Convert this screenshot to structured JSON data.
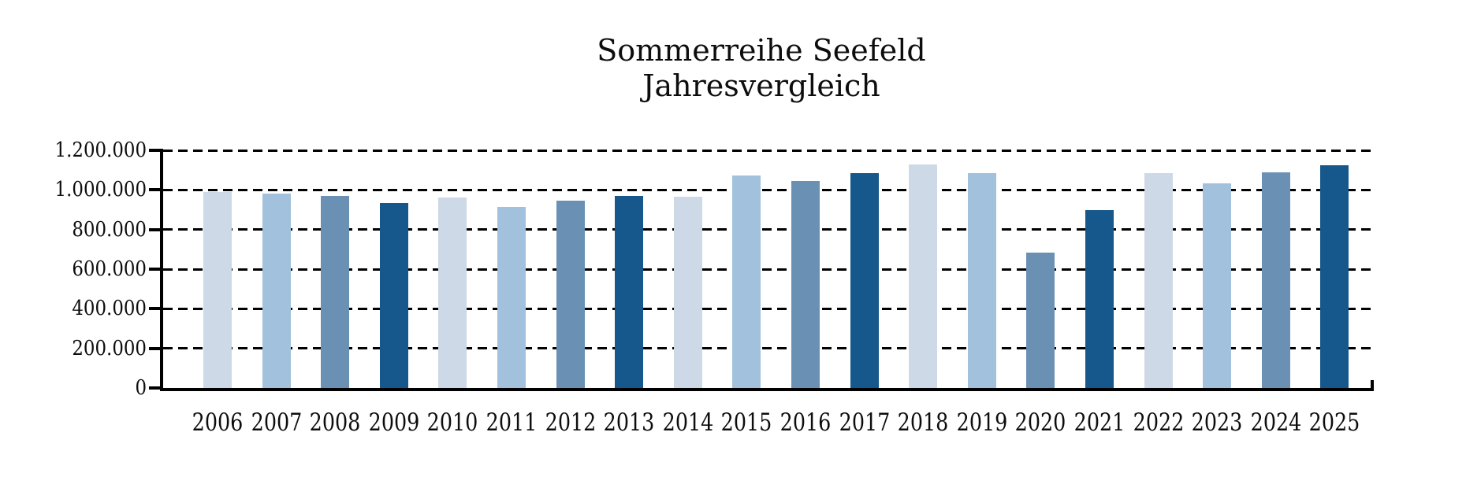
{
  "chart_data": {
    "type": "bar",
    "title_line1": "Sommerreihe Seefeld",
    "title_line2": "Jahresvergleich",
    "categories": [
      "2006",
      "2007",
      "2008",
      "2009",
      "2010",
      "2011",
      "2012",
      "2013",
      "2014",
      "2015",
      "2016",
      "2017",
      "2018",
      "2019",
      "2020",
      "2021",
      "2022",
      "2023",
      "2024",
      "2025"
    ],
    "values": [
      990000,
      980000,
      970000,
      935000,
      960000,
      915000,
      945000,
      970000,
      965000,
      1075000,
      1045000,
      1085000,
      1130000,
      1085000,
      685000,
      900000,
      1085000,
      1035000,
      1090000,
      1125000
    ],
    "y_ticks": [
      {
        "label": "1.200.000",
        "value": 1200000
      },
      {
        "label": "1.000.000",
        "value": 1000000
      },
      {
        "label": "800.000",
        "value": 800000
      },
      {
        "label": "600.000",
        "value": 600000
      },
      {
        "label": "400.000",
        "value": 400000
      },
      {
        "label": "200.000",
        "value": 200000
      },
      {
        "label": "0",
        "value": 0
      }
    ],
    "ylim": [
      0,
      1200000
    ],
    "xlabel": "",
    "ylabel": "",
    "grid": "horizontal-dashed",
    "legend": "none",
    "bar_color_cycle": [
      "#CDD9E6",
      "#A2C1DC",
      "#6A90B4",
      "#17588C"
    ],
    "axis_color": "#000000",
    "text_color": "#0d0d0d",
    "background_color": "#ffffff"
  }
}
